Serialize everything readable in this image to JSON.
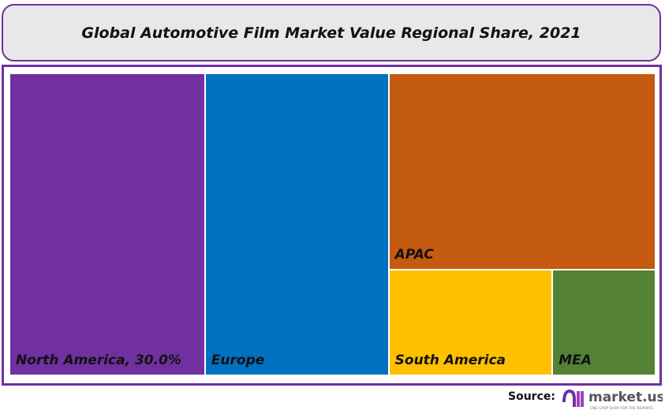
{
  "chart_data": {
    "type": "treemap",
    "title": "Global Automotive Film Market Value Regional Share, 2021",
    "items": [
      {
        "name": "North America",
        "label": "North America, 30.0%",
        "value": 30.0,
        "color": "#7030a0"
      },
      {
        "name": "Europe",
        "label": "Europe",
        "value": 28.3,
        "color": "#0070c0"
      },
      {
        "name": "APAC",
        "label": "APAC",
        "value": 26.7,
        "color": "#c55a11"
      },
      {
        "name": "South America",
        "label": "South America",
        "value": 8.8,
        "color": "#ffc000"
      },
      {
        "name": "MEA",
        "label": "MEA",
        "value": 5.5,
        "color": "#548235"
      }
    ]
  },
  "footer": {
    "source_label": "Source:",
    "logo_text": "market.us",
    "logo_tagline": "ONE STOP SHOP FOR THE REPORTS"
  },
  "colors": {
    "frame": "#7030a0",
    "title_bg": "#e8e8e8"
  }
}
